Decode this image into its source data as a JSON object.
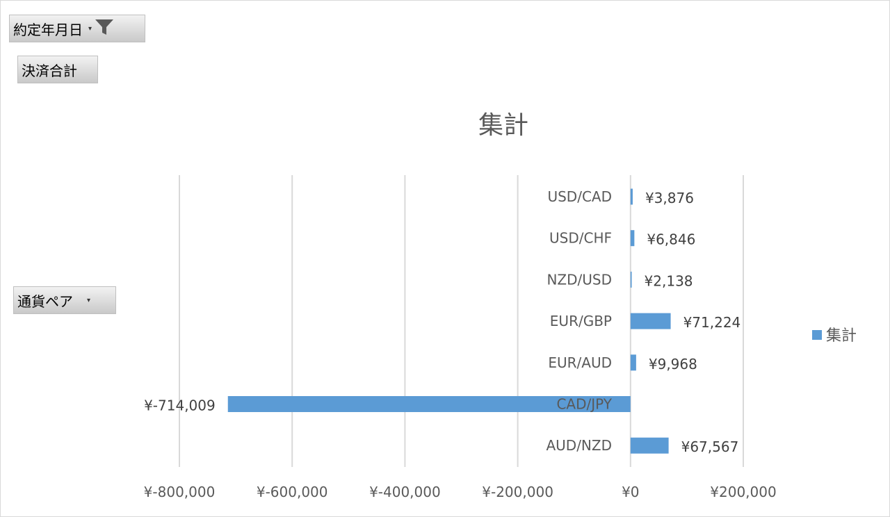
{
  "filters": {
    "date_field": "約定年月日",
    "value_field": "決済合計",
    "row_field": "通貨ペア"
  },
  "colors": {
    "bar": "#5b9bd5",
    "gridline": "#d9d9d9",
    "button_top": "#f2f2f2",
    "button_bottom": "#c9c9c9"
  },
  "icons": {
    "date_filter": "filter-funnel-icon",
    "dropdown": "dropdown-arrow-icon"
  },
  "chart_data": {
    "type": "bar",
    "orientation": "horizontal",
    "title": "集計",
    "categories": [
      "USD/CAD",
      "USD/CHF",
      "NZD/USD",
      "EUR/GBP",
      "EUR/AUD",
      "CAD/JPY",
      "AUD/NZD"
    ],
    "series": [
      {
        "name": "集計",
        "values": [
          3876,
          6846,
          2138,
          71224,
          9968,
          -714009,
          67567
        ],
        "labels": [
          "¥3,876",
          "¥6,846",
          "¥2,138",
          "¥71,224",
          "¥9,968",
          "¥-714,009",
          "¥67,567"
        ]
      }
    ],
    "xlim": [
      -800000,
      200000
    ],
    "xticks": [
      -800000,
      -600000,
      -400000,
      -200000,
      0,
      200000
    ],
    "xtick_labels": [
      "¥-800,000",
      "¥-600,000",
      "¥-400,000",
      "¥-200,000",
      "¥0",
      "¥200,000"
    ],
    "grid": true,
    "legend": {
      "position": "right",
      "entries": [
        "集計"
      ]
    }
  }
}
